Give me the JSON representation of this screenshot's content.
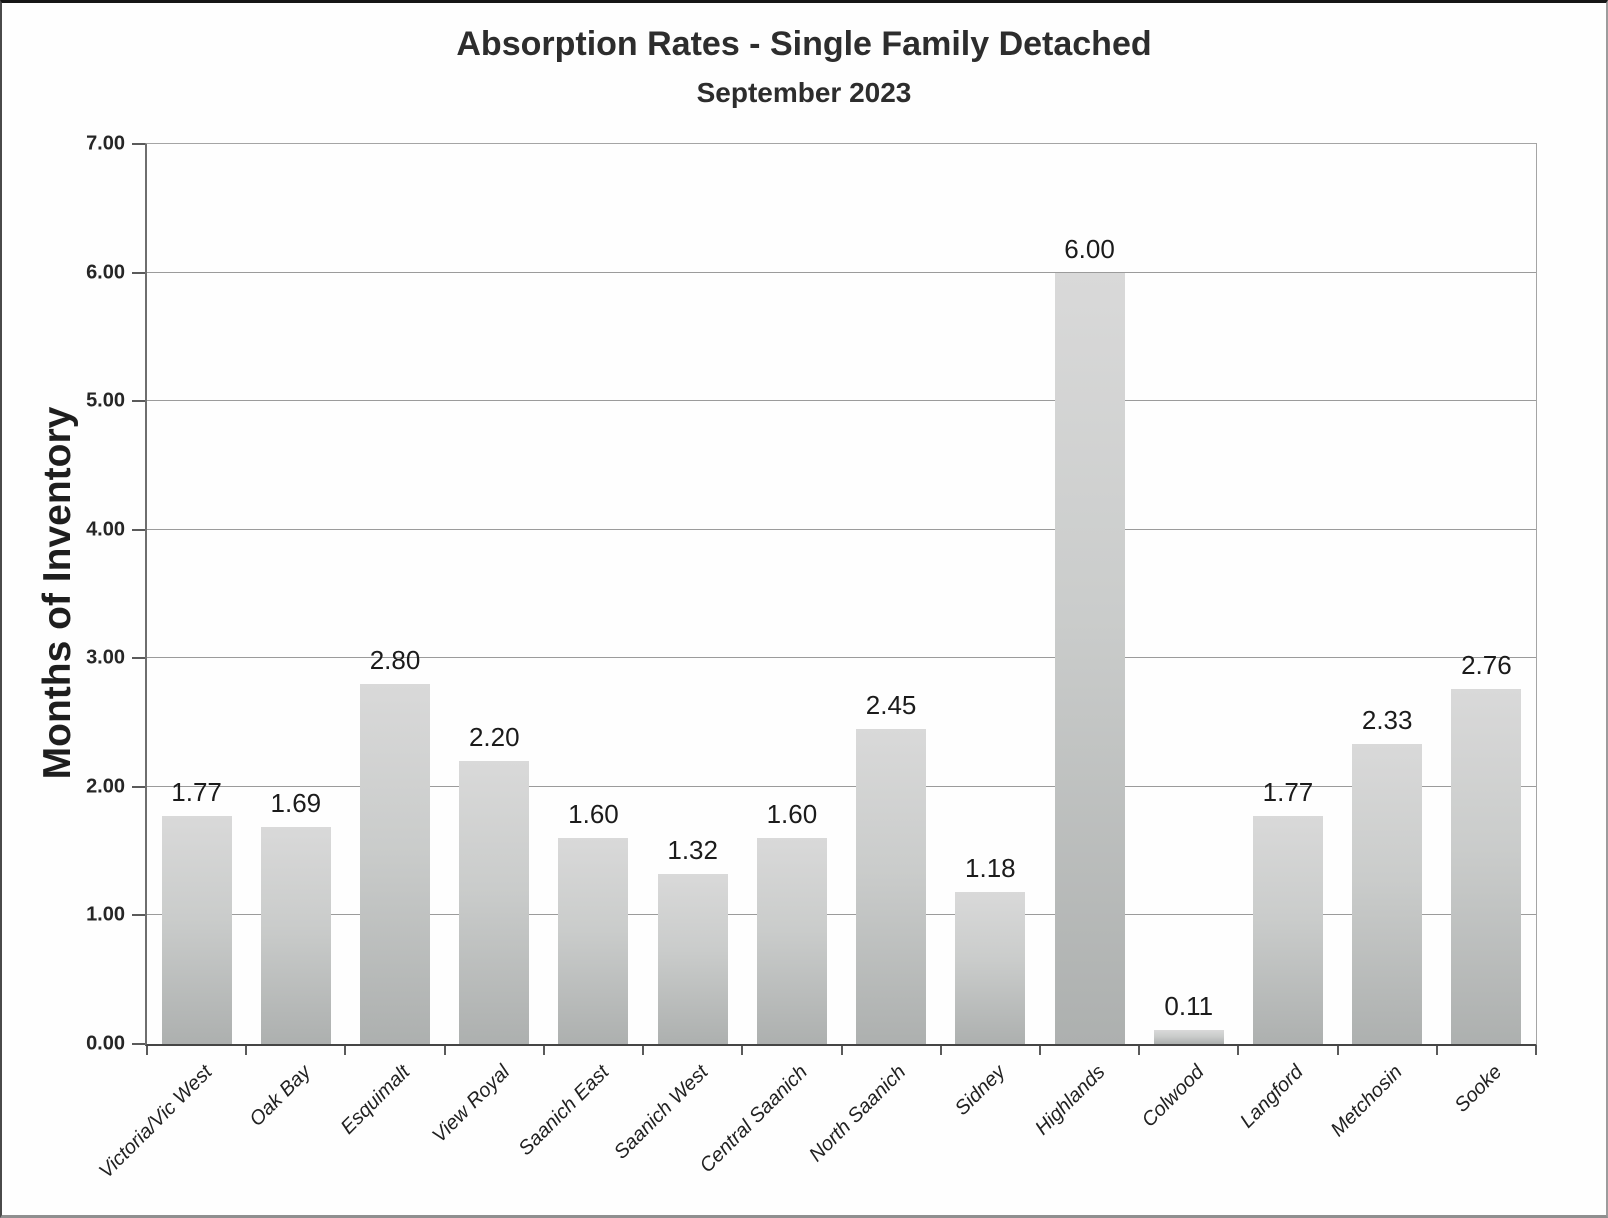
{
  "chart_data": {
    "type": "bar",
    "title": "Absorption Rates - Single Family Detached",
    "subtitle": "September 2023",
    "xlabel": "",
    "ylabel": "Months of Inventory",
    "ylim": [
      0,
      7
    ],
    "ytick_step": 1,
    "ytick_labels": [
      "0.00",
      "1.00",
      "2.00",
      "3.00",
      "4.00",
      "5.00",
      "6.00",
      "7.00"
    ],
    "grid": true,
    "legend": false,
    "categories": [
      "Victoria/Vic West",
      "Oak Bay",
      "Esquimalt",
      "View Royal",
      "Saanich East",
      "Saanich West",
      "Central Saanich",
      "North Saanich",
      "Sidney",
      "Highlands",
      "Colwood",
      "Langford",
      "Metchosin",
      "Sooke"
    ],
    "values": [
      1.77,
      1.69,
      2.8,
      2.2,
      1.6,
      1.32,
      1.6,
      2.45,
      1.18,
      6.0,
      0.11,
      1.77,
      2.33,
      2.76
    ],
    "value_labels": [
      "1.77",
      "1.69",
      "2.80",
      "2.20",
      "1.60",
      "1.32",
      "1.60",
      "2.45",
      "1.18",
      "6.00",
      "0.11",
      "1.77",
      "2.33",
      "2.76"
    ],
    "bar_color_top": "#d9d9d9",
    "bar_color_bottom": "#adb0af",
    "gridline_color": "#9b9b9b",
    "text_color": "#1e1e1e"
  }
}
